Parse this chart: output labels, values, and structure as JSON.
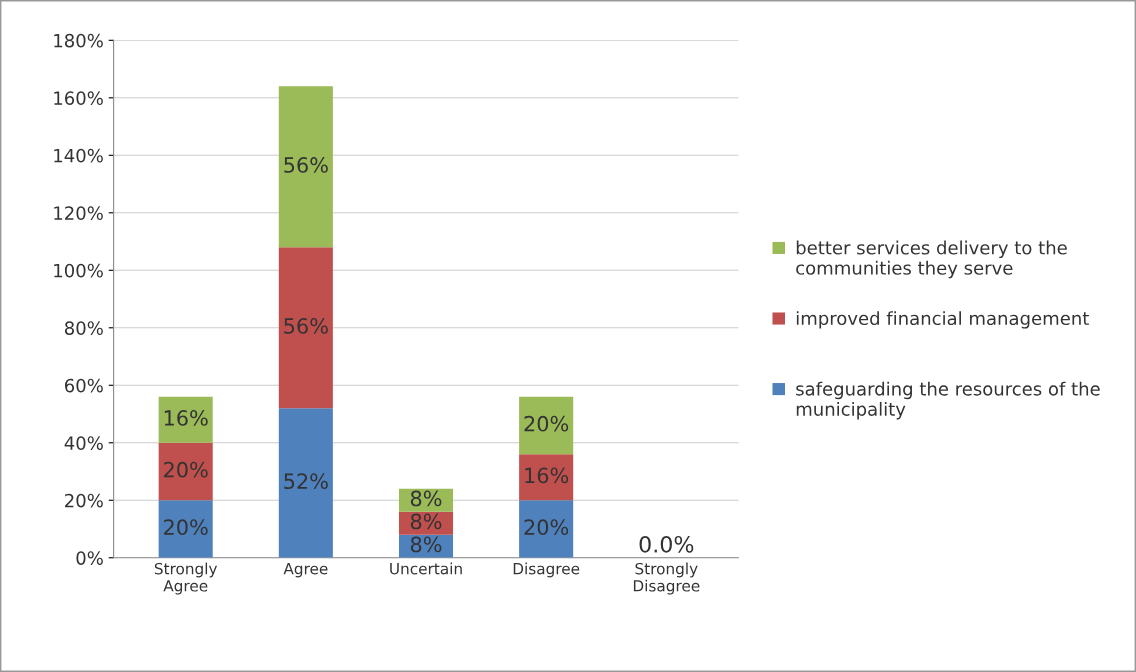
{
  "chart_data": {
    "type": "bar",
    "stacked": true,
    "categories": [
      "Strongly\nAgree",
      "Agree",
      "Uncertain",
      "Disagree",
      "Strongly\nDisagree"
    ],
    "series": [
      {
        "name": "safeguarding the resources of the municipality",
        "color": "#4f81bd",
        "values": [
          20,
          52,
          8,
          20,
          0
        ],
        "value_labels": [
          "20%",
          "52%",
          "8%",
          "20%",
          null
        ]
      },
      {
        "name": "improved financial management",
        "color": "#c0504d",
        "values": [
          20,
          56,
          8,
          16,
          0
        ],
        "value_labels": [
          "20%",
          "56%",
          "8%",
          "16%",
          null
        ]
      },
      {
        "name": "better services delivery to the communities they serve",
        "color": "#9bbb59",
        "values": [
          16,
          56,
          8,
          20,
          0
        ],
        "value_labels": [
          "16%",
          "56%",
          "8%",
          "20%",
          "0.0%"
        ]
      }
    ],
    "ylim": [
      0,
      180
    ],
    "yticks": [
      {
        "value": 0,
        "label": "0%"
      },
      {
        "value": 20,
        "label": "20%"
      },
      {
        "value": 40,
        "label": "40%"
      },
      {
        "value": 60,
        "label": "60%"
      },
      {
        "value": 80,
        "label": "80%"
      },
      {
        "value": 100,
        "label": "100%"
      },
      {
        "value": 120,
        "label": "120%"
      },
      {
        "value": 140,
        "label": "140%"
      },
      {
        "value": 160,
        "label": "160%"
      },
      {
        "value": 180,
        "label": "180%"
      }
    ],
    "grid": "y",
    "legend": "right"
  }
}
